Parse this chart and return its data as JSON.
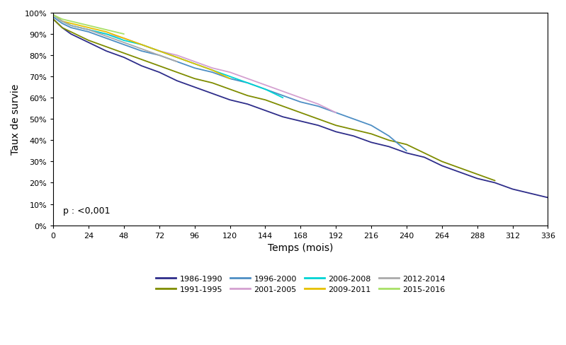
{
  "xlabel": "Temps (mois)",
  "ylabel": "Taux de survie",
  "xlim": [
    0,
    336
  ],
  "ylim": [
    0,
    1.0
  ],
  "xticks": [
    0,
    24,
    48,
    72,
    96,
    120,
    144,
    168,
    192,
    216,
    240,
    264,
    288,
    312,
    336
  ],
  "yticks": [
    0.0,
    0.1,
    0.2,
    0.3,
    0.4,
    0.5,
    0.6,
    0.7,
    0.8,
    0.9,
    1.0
  ],
  "pvalue_text": "p : <0,001",
  "series": [
    {
      "label": "1986-1990",
      "color": "#2e2d8a",
      "x": [
        0,
        6,
        12,
        24,
        36,
        48,
        60,
        72,
        84,
        96,
        108,
        120,
        132,
        144,
        156,
        168,
        180,
        192,
        204,
        216,
        228,
        240,
        252,
        264,
        276,
        288,
        300,
        312,
        324,
        336
      ],
      "y": [
        0.97,
        0.93,
        0.9,
        0.86,
        0.82,
        0.79,
        0.75,
        0.72,
        0.68,
        0.65,
        0.62,
        0.59,
        0.57,
        0.54,
        0.51,
        0.49,
        0.47,
        0.44,
        0.42,
        0.39,
        0.37,
        0.34,
        0.32,
        0.28,
        0.25,
        0.22,
        0.2,
        0.17,
        0.15,
        0.13
      ]
    },
    {
      "label": "1991-1995",
      "color": "#7f8c00",
      "x": [
        0,
        6,
        12,
        24,
        36,
        48,
        60,
        72,
        84,
        96,
        108,
        120,
        132,
        144,
        156,
        168,
        180,
        192,
        204,
        216,
        228,
        240,
        252,
        264,
        276,
        288,
        300
      ],
      "y": [
        0.97,
        0.93,
        0.91,
        0.87,
        0.84,
        0.81,
        0.78,
        0.75,
        0.72,
        0.69,
        0.67,
        0.64,
        0.61,
        0.59,
        0.56,
        0.53,
        0.5,
        0.47,
        0.45,
        0.43,
        0.4,
        0.38,
        0.34,
        0.3,
        0.27,
        0.24,
        0.21
      ]
    },
    {
      "label": "1996-2000",
      "color": "#4d8ec4",
      "x": [
        0,
        6,
        12,
        24,
        36,
        48,
        60,
        72,
        84,
        96,
        108,
        120,
        132,
        144,
        156,
        168,
        180,
        192,
        204,
        216,
        228,
        240
      ],
      "y": [
        0.98,
        0.95,
        0.93,
        0.91,
        0.88,
        0.85,
        0.82,
        0.8,
        0.77,
        0.74,
        0.72,
        0.69,
        0.67,
        0.64,
        0.61,
        0.58,
        0.56,
        0.53,
        0.5,
        0.47,
        0.42,
        0.35
      ]
    },
    {
      "label": "2001-2005",
      "color": "#d4a0d0",
      "x": [
        0,
        6,
        12,
        24,
        36,
        48,
        60,
        72,
        84,
        96,
        108,
        120,
        132,
        144,
        156,
        168,
        180,
        192
      ],
      "y": [
        0.99,
        0.96,
        0.94,
        0.92,
        0.9,
        0.88,
        0.85,
        0.82,
        0.8,
        0.77,
        0.74,
        0.72,
        0.69,
        0.66,
        0.63,
        0.6,
        0.57,
        0.53
      ]
    },
    {
      "label": "2006-2008",
      "color": "#00d4d4",
      "x": [
        0,
        6,
        12,
        24,
        36,
        48,
        60,
        72,
        84,
        96,
        108,
        120,
        132,
        144,
        156
      ],
      "y": [
        0.99,
        0.96,
        0.94,
        0.92,
        0.9,
        0.87,
        0.85,
        0.82,
        0.79,
        0.76,
        0.73,
        0.7,
        0.67,
        0.64,
        0.6
      ]
    },
    {
      "label": "2009-2011",
      "color": "#e6c000",
      "x": [
        0,
        6,
        12,
        24,
        36,
        48,
        60,
        72,
        84,
        96,
        108,
        120
      ],
      "y": [
        0.99,
        0.96,
        0.95,
        0.93,
        0.91,
        0.88,
        0.85,
        0.82,
        0.79,
        0.76,
        0.73,
        0.69
      ]
    },
    {
      "label": "2012-2014",
      "color": "#aaaaaa",
      "x": [
        0,
        6,
        12,
        24,
        36,
        48,
        60,
        72,
        84
      ],
      "y": [
        0.99,
        0.96,
        0.94,
        0.92,
        0.89,
        0.86,
        0.83,
        0.8,
        0.77
      ]
    },
    {
      "label": "2015-2016",
      "color": "#a8e066",
      "x": [
        0,
        6,
        12,
        24,
        36,
        48
      ],
      "y": [
        0.99,
        0.97,
        0.96,
        0.94,
        0.92,
        0.9
      ]
    }
  ],
  "legend_row1": [
    "1986-1990",
    "1991-1995",
    "1996-2000",
    "2001-2005"
  ],
  "legend_row2": [
    "2006-2008",
    "2009-2011",
    "2012-2014",
    "2015-2016"
  ]
}
